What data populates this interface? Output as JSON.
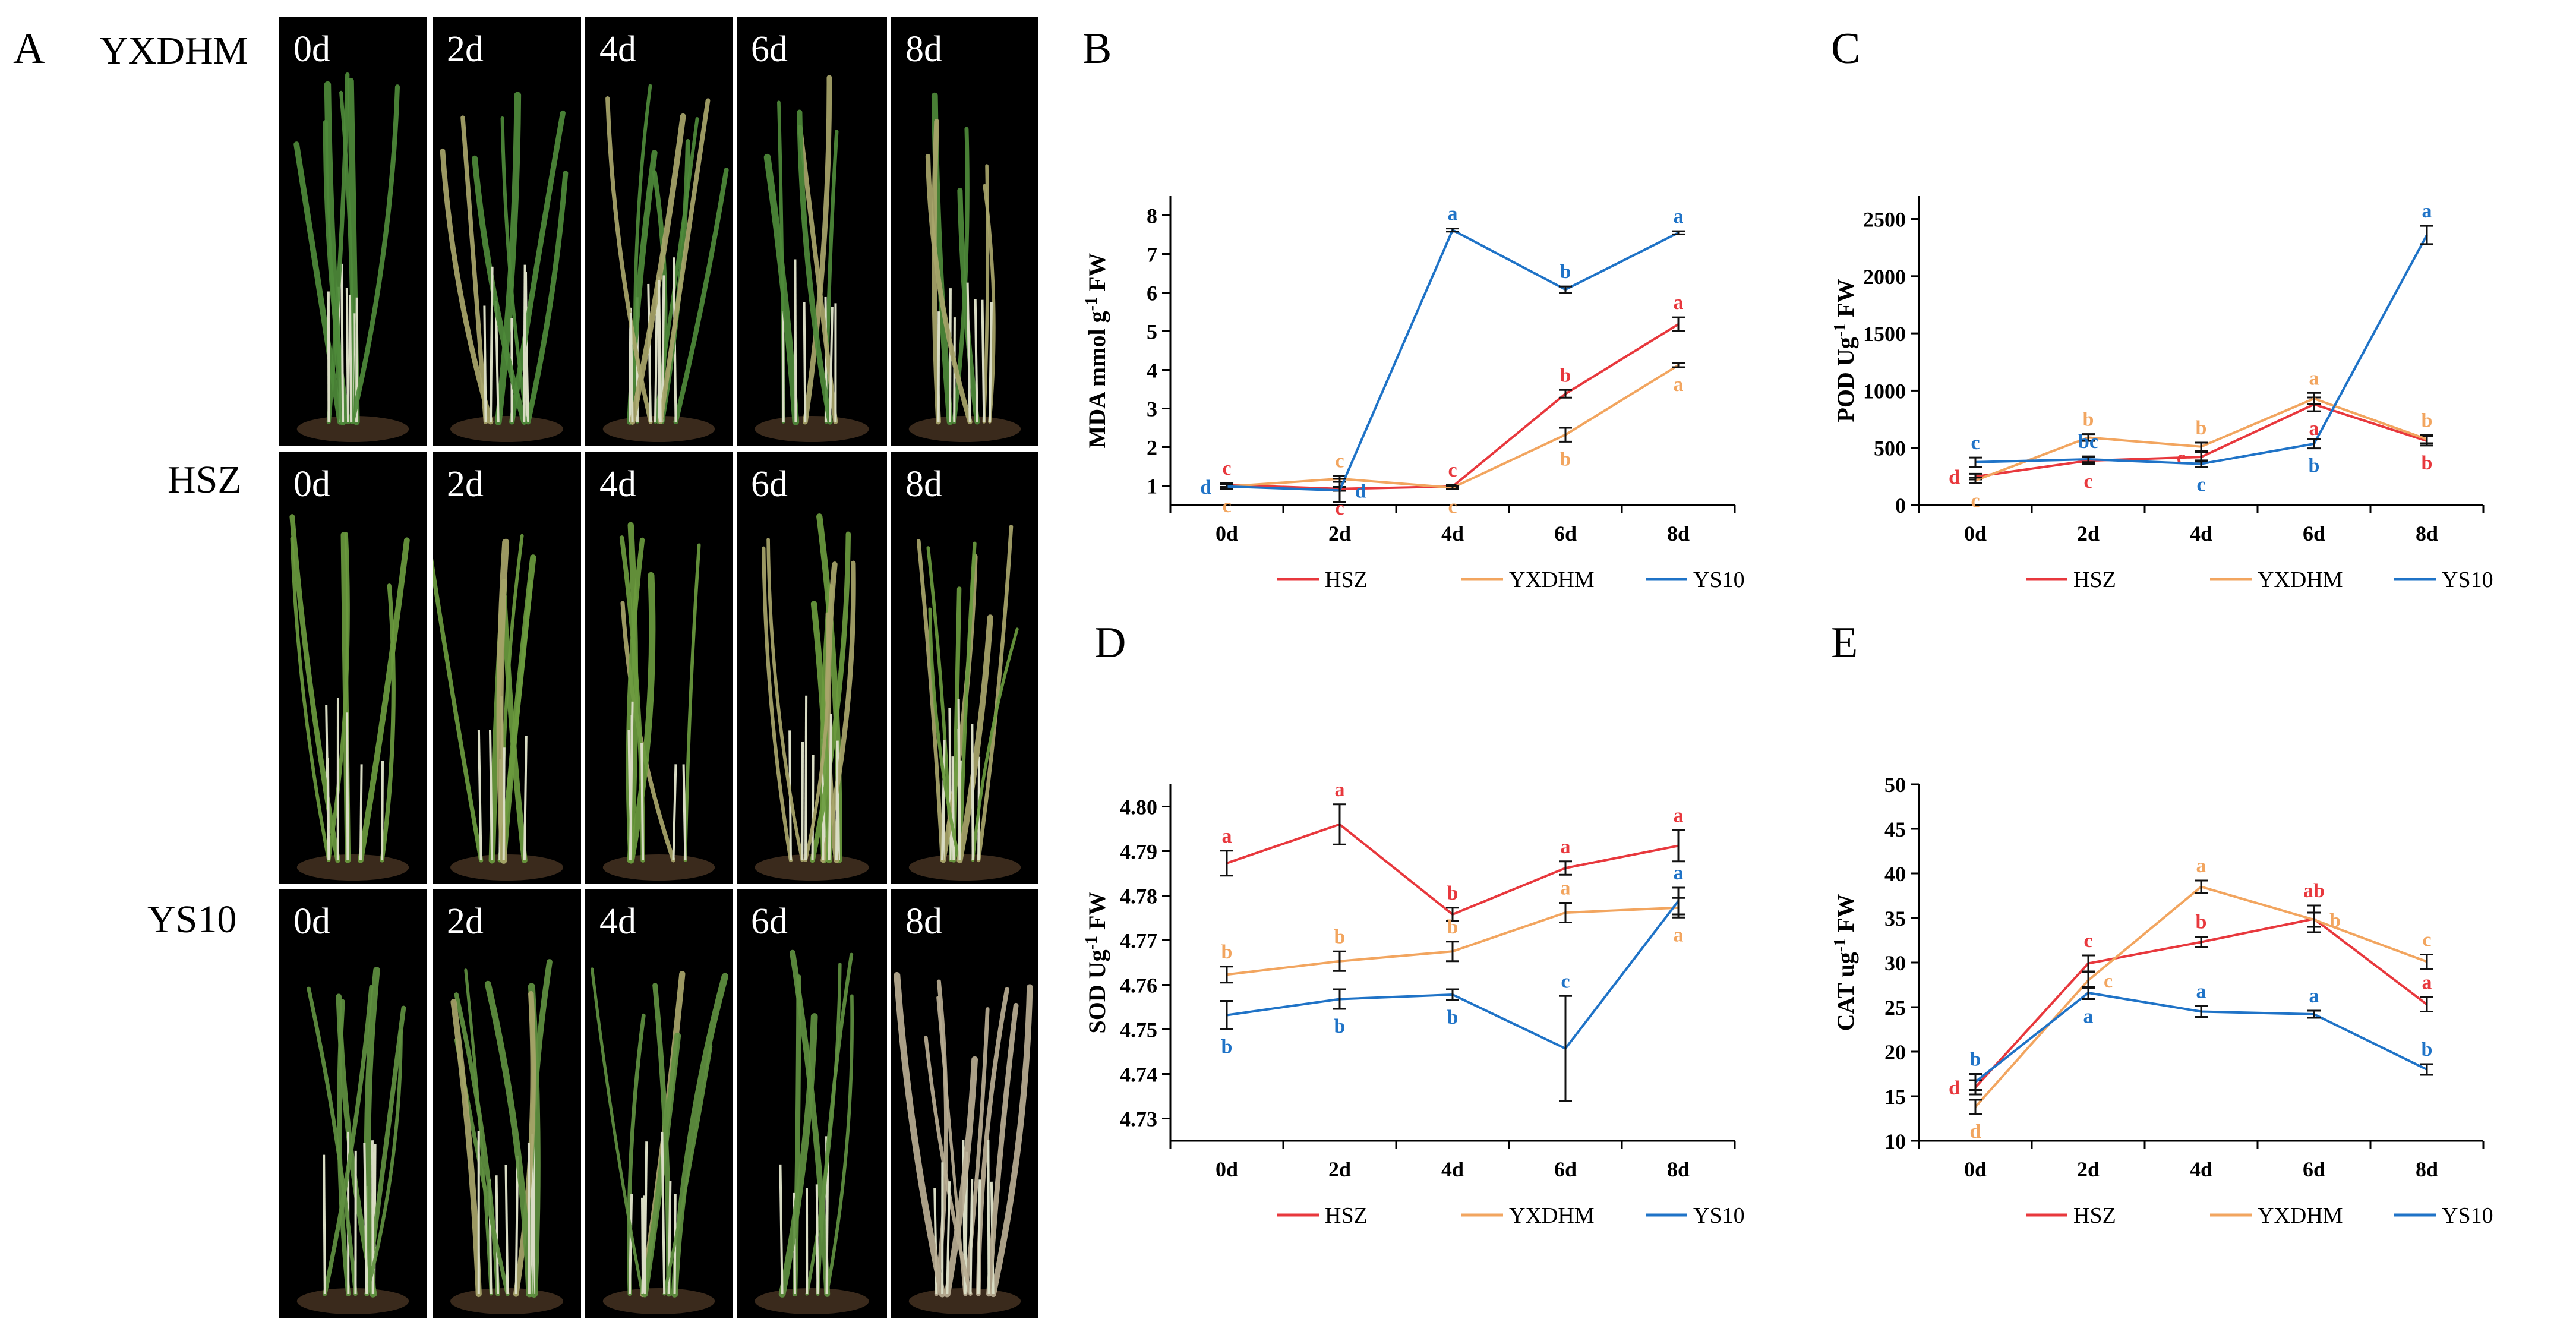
{
  "panels": {
    "a": "A",
    "b": "B",
    "c": "C",
    "d": "D",
    "e": "E"
  },
  "photo_panel": {
    "rows": [
      {
        "label": "YXDHM",
        "days": [
          "0d",
          "2d",
          "4d",
          "6d",
          "8d"
        ],
        "leaf_color": "#4e8a3a"
      },
      {
        "label": "HSZ",
        "days": [
          "0d",
          "2d",
          "4d",
          "6d",
          "8d"
        ],
        "leaf_color": "#6a9a3e"
      },
      {
        "label": "YS10",
        "days": [
          "0d",
          "2d",
          "4d",
          "6d",
          "8d"
        ],
        "leaf_color": "#5f9040"
      }
    ]
  },
  "colors": {
    "HSZ": "#e8383d",
    "YXDHM": "#f2a55f",
    "YS10": "#1f73c7"
  },
  "chart_data": [
    {
      "id": "B",
      "type": "line",
      "title": "",
      "xlabel": "",
      "ylabel": "MDA mmol g-1 FW",
      "ylabel_prefix": "MDA mmol g",
      "ylabel_sup": "-1",
      "ylabel_suffix": " FW",
      "categories": [
        "0d",
        "2d",
        "4d",
        "6d",
        "8d"
      ],
      "ylim": [
        0.5,
        8.5
      ],
      "yticks": [
        1,
        2,
        3,
        4,
        5,
        6,
        7,
        8
      ],
      "ytick_labels": [
        "1",
        "2",
        "3",
        "4",
        "5",
        "6",
        "7",
        "8"
      ],
      "legend": "bottom",
      "series": [
        {
          "name": "HSZ",
          "values": [
            1.02,
            0.92,
            0.98,
            3.38,
            5.18
          ],
          "errors": [
            0.05,
            0.05,
            0.04,
            0.1,
            0.18
          ],
          "letters": [
            "c",
            "c",
            "c",
            "b",
            "a"
          ],
          "letter_pos": [
            "above",
            "below",
            "above",
            "above",
            "above"
          ]
        },
        {
          "name": "YXDHM",
          "values": [
            0.98,
            1.18,
            0.95,
            2.32,
            4.12
          ],
          "errors": [
            0.05,
            0.08,
            0.04,
            0.18,
            0.05
          ],
          "letters": [
            "c",
            "c",
            "c",
            "b",
            "a"
          ],
          "letter_pos": [
            "below",
            "above",
            "below",
            "below",
            "below"
          ]
        },
        {
          "name": "YS10",
          "values": [
            0.98,
            0.88,
            7.62,
            6.08,
            7.55
          ],
          "errors": [
            0.07,
            0.3,
            0.04,
            0.08,
            0.04
          ],
          "letters": [
            "d",
            "d",
            "a",
            "b",
            "a"
          ],
          "letter_pos": [
            "left",
            "right",
            "above",
            "above",
            "above"
          ]
        }
      ]
    },
    {
      "id": "C",
      "type": "line",
      "title": "",
      "xlabel": "",
      "ylabel": "POD Ug-1 FW",
      "ylabel_prefix": "POD Ug",
      "ylabel_sup": "-1",
      "ylabel_suffix": " FW",
      "categories": [
        "0d",
        "2d",
        "4d",
        "6d",
        "8d"
      ],
      "ylim": [
        0,
        2700
      ],
      "yticks": [
        0,
        500,
        1000,
        1500,
        2000,
        2500
      ],
      "ytick_labels": [
        "0",
        "500",
        "1000",
        "1500",
        "2000",
        "2500"
      ],
      "legend": "bottom",
      "series": [
        {
          "name": "HSZ",
          "values": [
            248,
            388,
            420,
            880,
            560
          ],
          "errors": [
            25,
            30,
            40,
            60,
            40
          ],
          "letters": [
            "d",
            "c",
            "c",
            "a",
            "b"
          ],
          "letter_pos": [
            "left",
            "below",
            "left",
            "below",
            "below"
          ]
        },
        {
          "name": "YXDHM",
          "values": [
            215,
            590,
            510,
            930,
            575
          ],
          "errors": [
            25,
            30,
            35,
            50,
            35
          ],
          "letters": [
            "c",
            "b",
            "b",
            "a",
            "b"
          ],
          "letter_pos": [
            "below",
            "above",
            "above",
            "above",
            "above"
          ]
        },
        {
          "name": "YS10",
          "values": [
            375,
            400,
            360,
            535,
            2360
          ],
          "errors": [
            40,
            25,
            30,
            40,
            80
          ],
          "letters": [
            "c",
            "bc",
            "c",
            "b",
            "a"
          ],
          "letter_pos": [
            "above",
            "above",
            "below",
            "below",
            "above"
          ]
        }
      ]
    },
    {
      "id": "D",
      "type": "line",
      "title": "",
      "xlabel": "",
      "ylabel": "SOD Ug-1 FW",
      "ylabel_prefix": "SOD Ug",
      "ylabel_sup": "-1",
      "ylabel_suffix": " FW",
      "categories": [
        "0d",
        "2d",
        "4d",
        "6d",
        "8d"
      ],
      "ylim": [
        4.725,
        4.805
      ],
      "yticks": [
        4.73,
        4.74,
        4.75,
        4.76,
        4.77,
        4.78,
        4.79,
        4.8
      ],
      "ytick_labels": [
        "4.73",
        "4.74",
        "4.75",
        "4.76",
        "4.77",
        "4.78",
        "4.79",
        "4.80"
      ],
      "legend": "bottom",
      "series": [
        {
          "name": "HSZ",
          "values": [
            4.7873,
            4.796,
            4.7758,
            4.7862,
            4.7912
          ],
          "errors": [
            0.0028,
            0.0045,
            0.0015,
            0.0015,
            0.0035
          ],
          "letters": [
            "a",
            "a",
            "b",
            "a",
            "a"
          ],
          "letter_pos": [
            "above",
            "above",
            "above",
            "above",
            "above"
          ]
        },
        {
          "name": "YXDHM",
          "values": [
            4.7623,
            4.7653,
            4.7675,
            4.7762,
            4.7773
          ],
          "errors": [
            0.0018,
            0.0022,
            0.0022,
            0.0022,
            0.0022
          ],
          "letters": [
            "b",
            "b",
            "b",
            "a",
            "a"
          ],
          "letter_pos": [
            "above",
            "above",
            "above",
            "above",
            "below"
          ]
        },
        {
          "name": "YS10",
          "values": [
            4.7532,
            4.7568,
            4.7578,
            4.7457,
            4.7788
          ],
          "errors": [
            0.0032,
            0.0022,
            0.0012,
            0.0118,
            0.003
          ],
          "letters": [
            "b",
            "b",
            "b",
            "c",
            "a"
          ],
          "letter_pos": [
            "below",
            "below",
            "below",
            "above",
            "above"
          ]
        }
      ]
    },
    {
      "id": "E",
      "type": "line",
      "title": "",
      "xlabel": "",
      "ylabel": "CAT ug-1 FW",
      "ylabel_prefix": "CAT ug",
      "ylabel_sup": "-1",
      "ylabel_suffix": " FW",
      "categories": [
        "0d",
        "2d",
        "4d",
        "6d",
        "8d"
      ],
      "ylim": [
        10,
        50
      ],
      "yticks": [
        10,
        15,
        20,
        25,
        30,
        35,
        40,
        45,
        50
      ],
      "ytick_labels": [
        "10",
        "15",
        "20",
        "25",
        "30",
        "35",
        "40",
        "45",
        "50"
      ],
      "legend": "bottom",
      "series": [
        {
          "name": "HSZ",
          "values": [
            16.0,
            29.9,
            32.3,
            34.9,
            25.3
          ],
          "errors": [
            0.8,
            0.9,
            0.6,
            1.5,
            0.8
          ],
          "letters": [
            "d",
            "c",
            "b",
            "ab",
            "a"
          ],
          "letter_pos": [
            "left",
            "above",
            "above",
            "above",
            "above"
          ]
        },
        {
          "name": "YXDHM",
          "values": [
            13.8,
            28.0,
            38.5,
            34.8,
            30.1
          ],
          "errors": [
            0.8,
            0.9,
            0.7,
            0.8,
            0.8
          ],
          "letters": [
            "d",
            "c",
            "a",
            "b",
            "c"
          ],
          "letter_pos": [
            "below",
            "right",
            "above",
            "right",
            "above"
          ]
        },
        {
          "name": "YS10",
          "values": [
            16.6,
            26.6,
            24.5,
            24.2,
            18.0
          ],
          "errors": [
            0.9,
            0.7,
            0.6,
            0.4,
            0.6
          ],
          "letters": [
            "b",
            "a",
            "a",
            "a",
            "b"
          ],
          "letter_pos": [
            "above",
            "below",
            "above",
            "above",
            "above"
          ]
        }
      ]
    }
  ]
}
